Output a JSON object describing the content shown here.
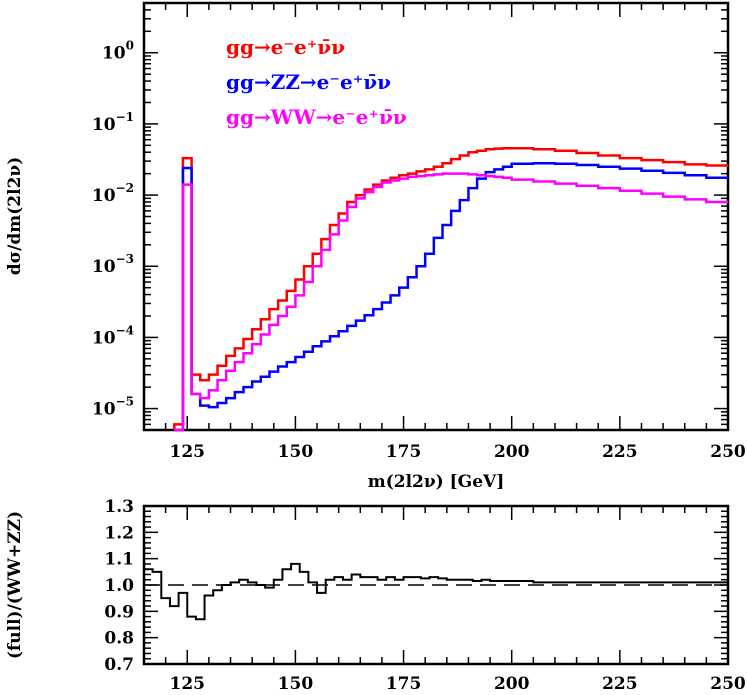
{
  "chart_data": [
    {
      "type": "line",
      "step": true,
      "xlabel": "m(2l2ν) [GeV]",
      "ylabel": "dσ/dm(2l2ν)",
      "xlim": [
        115,
        250
      ],
      "ylim": [
        5e-06,
        5
      ],
      "yscale": "log",
      "xticks": [
        "125",
        "150",
        "175",
        "200",
        "225",
        "250"
      ],
      "yticks": [
        {
          "base": "10",
          "exp": "0",
          "value": 1
        },
        {
          "base": "10",
          "exp": "−1",
          "value": 0.1
        },
        {
          "base": "10",
          "exp": "−2",
          "value": 0.01
        },
        {
          "base": "10",
          "exp": "−3",
          "value": 0.001
        },
        {
          "base": "10",
          "exp": "−4",
          "value": 0.0001
        },
        {
          "base": "10",
          "exp": "−5",
          "value": 1e-05
        }
      ],
      "legend_position": "top-left",
      "legend": [
        {
          "text": "gg→e⁻e⁺ν̄ν",
          "color": "#ff0000"
        },
        {
          "text": "gg→ZZ→e⁻e⁺ν̄ν",
          "color": "#0000ff"
        },
        {
          "text": "gg→WW→e⁻e⁺ν̄ν",
          "color": "#ff00ff"
        }
      ],
      "series": [
        {
          "color": "#ff0000",
          "x": [
            122,
            124,
            126,
            128,
            130,
            132,
            134,
            136,
            138,
            140,
            142,
            144,
            146,
            148,
            150,
            152,
            154,
            156,
            158,
            160,
            162,
            164,
            166,
            168,
            170,
            172,
            174,
            176,
            178,
            180,
            182,
            184,
            186,
            188,
            190,
            192,
            194,
            196,
            198,
            200,
            205,
            210,
            215,
            220,
            225,
            230,
            235,
            240,
            245,
            250
          ],
          "y": [
            1e-09,
            6e-06,
            0.033,
            3e-05,
            2.5e-05,
            3e-05,
            4e-05,
            5.5e-05,
            7e-05,
            9.5e-05,
            0.00013,
            0.00018,
            0.00025,
            0.00033,
            0.00045,
            0.00065,
            0.001,
            0.0015,
            0.0024,
            0.0038,
            0.0055,
            0.008,
            0.01,
            0.012,
            0.014,
            0.016,
            0.0175,
            0.019,
            0.02,
            0.0215,
            0.023,
            0.025,
            0.028,
            0.032,
            0.036,
            0.04,
            0.042,
            0.044,
            0.045,
            0.0455,
            0.0455,
            0.044,
            0.042,
            0.039,
            0.036,
            0.033,
            0.031,
            0.029,
            0.027,
            0.026
          ]
        },
        {
          "color": "#0000ff",
          "x": [
            122,
            124,
            126,
            128,
            130,
            132,
            134,
            136,
            138,
            140,
            142,
            144,
            146,
            148,
            150,
            152,
            154,
            156,
            158,
            160,
            162,
            164,
            166,
            168,
            170,
            172,
            174,
            176,
            178,
            180,
            182,
            184,
            186,
            188,
            190,
            192,
            194,
            196,
            198,
            200,
            205,
            210,
            215,
            220,
            225,
            230,
            235,
            240,
            245,
            250
          ],
          "y": [
            1e-09,
            5e-06,
            0.024,
            1.6e-05,
            1.1e-05,
            1.05e-05,
            1.2e-05,
            1.4e-05,
            1.7e-05,
            2e-05,
            2.4e-05,
            2.8e-05,
            3.3e-05,
            3.9e-05,
            4.5e-05,
            5.3e-05,
            6.3e-05,
            7.5e-05,
            8.8e-05,
            0.000104,
            0.000122,
            0.000145,
            0.000172,
            0.000205,
            0.00025,
            0.00031,
            0.00039,
            0.0005,
            0.0007,
            0.001,
            0.0015,
            0.0025,
            0.0038,
            0.006,
            0.0085,
            0.0125,
            0.017,
            0.021,
            0.023,
            0.025,
            0.0275,
            0.028,
            0.0275,
            0.0265,
            0.025,
            0.0235,
            0.022,
            0.0205,
            0.019,
            0.0175
          ]
        },
        {
          "color": "#ff00ff",
          "x": [
            122,
            124,
            126,
            128,
            130,
            132,
            134,
            136,
            138,
            140,
            142,
            144,
            146,
            148,
            150,
            152,
            154,
            156,
            158,
            160,
            162,
            164,
            166,
            168,
            170,
            172,
            174,
            176,
            178,
            180,
            182,
            184,
            186,
            188,
            190,
            192,
            194,
            196,
            198,
            200,
            205,
            210,
            215,
            220,
            225,
            230,
            235,
            240,
            245,
            250
          ],
          "y": [
            1e-09,
            5e-06,
            0.014,
            1.6e-05,
            1.4e-05,
            1.8e-05,
            2.5e-05,
            3.4e-05,
            4.5e-05,
            6e-05,
            8e-05,
            0.00011,
            0.00015,
            0.0002,
            0.00027,
            0.00039,
            0.0006,
            0.001,
            0.0017,
            0.0028,
            0.0044,
            0.0068,
            0.009,
            0.011,
            0.013,
            0.015,
            0.016,
            0.017,
            0.018,
            0.0185,
            0.019,
            0.0195,
            0.02,
            0.02,
            0.02,
            0.0195,
            0.019,
            0.0185,
            0.018,
            0.0175,
            0.0165,
            0.0155,
            0.0145,
            0.0135,
            0.0125,
            0.0115,
            0.0105,
            0.0095,
            0.0087,
            0.008
          ]
        }
      ]
    },
    {
      "type": "line",
      "step": true,
      "xlabel": "",
      "ylabel": "(full)/(WW+ZZ)",
      "xlim": [
        115,
        250
      ],
      "ylim": [
        0.7,
        1.3
      ],
      "xticks": [
        "125",
        "150",
        "175",
        "200",
        "225",
        "250"
      ],
      "yticks": [
        "0.7",
        "0.8",
        "0.9",
        "1.0",
        "1.1",
        "1.2",
        "1.3"
      ],
      "reference_line": {
        "y": 1.0,
        "style": "dashed"
      },
      "series": [
        {
          "color": "#000000",
          "x": [
            115,
            117,
            119,
            121,
            123,
            125,
            127,
            129,
            131,
            133,
            135,
            137,
            139,
            141,
            143,
            145,
            147,
            149,
            151,
            153,
            155,
            157,
            159,
            161,
            163,
            165,
            167,
            169,
            171,
            173,
            175,
            177,
            179,
            181,
            183,
            185,
            187,
            189,
            191,
            193,
            195,
            200,
            205,
            210,
            215,
            220,
            225,
            230,
            235,
            240,
            245,
            250
          ],
          "y": [
            1.06,
            1.05,
            0.95,
            0.92,
            0.97,
            0.88,
            0.87,
            0.96,
            0.98,
            1.0,
            1.01,
            1.02,
            1.01,
            1.0,
            0.99,
            1.02,
            1.06,
            1.08,
            1.05,
            1.01,
            0.97,
            1.02,
            1.03,
            1.02,
            1.04,
            1.03,
            1.03,
            1.02,
            1.03,
            1.02,
            1.03,
            1.03,
            1.025,
            1.03,
            1.025,
            1.02,
            1.02,
            1.02,
            1.015,
            1.02,
            1.015,
            1.015,
            1.01,
            1.01,
            1.01,
            1.01,
            1.01,
            1.01,
            1.01,
            1.01,
            1.01,
            1.01
          ]
        }
      ]
    }
  ]
}
